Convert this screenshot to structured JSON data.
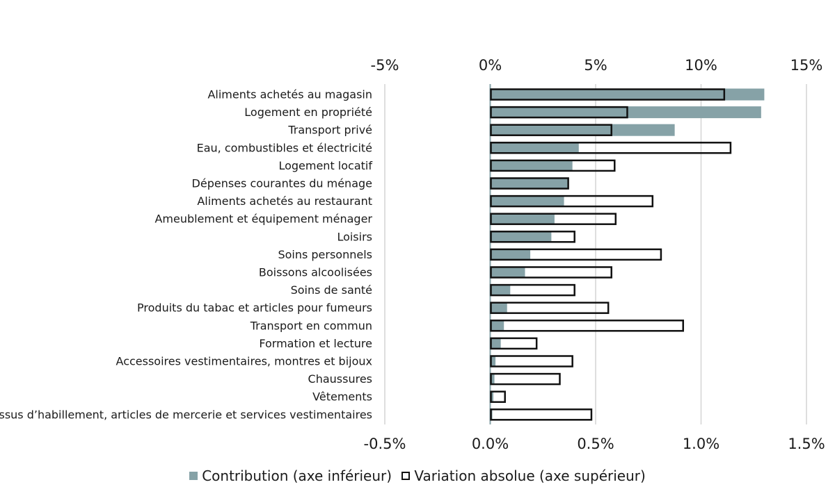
{
  "chart_data": {
    "type": "bar",
    "categories": [
      "Aliments achetés au magasin",
      "Logement en propriété",
      "Transport privé",
      "Eau, combustibles et électricité",
      "Logement locatif",
      "Dépenses courantes du ménage",
      "Aliments achetés au restaurant",
      "Ameublement et équipement ménager",
      "Loisirs",
      "Soins personnels",
      "Boissons alcoolisées",
      "Soins de santé",
      "Produits du tabac et articles pour fumeurs",
      "Transport en commun",
      "Formation et lecture",
      "Accessoires vestimentaires, montres et bijoux",
      "Chaussures",
      "Vêtements",
      "Tissus d’habillement, articles de mercerie et services vestimentaires"
    ],
    "series": [
      {
        "name": "Contribution (axe inférieur)",
        "axis": "bottom",
        "values": [
          1.3,
          1.285,
          0.875,
          0.42,
          0.39,
          0.37,
          0.35,
          0.305,
          0.29,
          0.19,
          0.165,
          0.095,
          0.08,
          0.065,
          0.05,
          0.025,
          0.02,
          0.015,
          0.01
        ]
      },
      {
        "name": "Variation absolue (axe supérieur)",
        "axis": "top",
        "values": [
          11.1,
          6.5,
          5.75,
          11.4,
          5.9,
          3.7,
          7.7,
          5.95,
          4.0,
          8.1,
          5.75,
          4.0,
          5.6,
          9.15,
          2.2,
          3.9,
          3.3,
          0.7,
          4.8
        ]
      }
    ],
    "top_axis": {
      "ticks": [
        -5,
        0,
        5,
        10,
        15
      ],
      "tick_labels": [
        "-5%",
        "0%",
        "5%",
        "10%",
        "15%"
      ],
      "range": [
        -5,
        15
      ]
    },
    "bottom_axis": {
      "ticks": [
        -0.5,
        0,
        0.5,
        1.0,
        1.5
      ],
      "tick_labels": [
        "-0.5%",
        "0.0%",
        "0.5%",
        "1.0%",
        "1.5%"
      ],
      "range": [
        -0.5,
        1.5
      ]
    },
    "grid": "vertical",
    "legend_position": "bottom",
    "colors": {
      "contribution": "#86a2a7",
      "outline": "#111111",
      "grid": "#d4d4d4",
      "zero_line": "#86a2a7"
    }
  }
}
